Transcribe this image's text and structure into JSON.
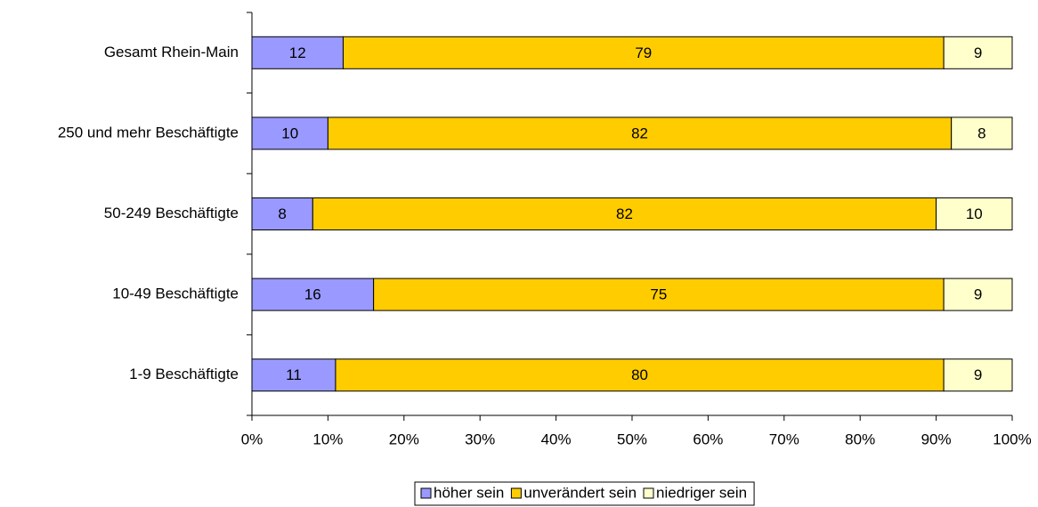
{
  "chart_data": {
    "type": "bar",
    "orientation": "horizontal",
    "stacked": true,
    "categories": [
      "Gesamt Rhein-Main",
      "250 und mehr Beschäftigte",
      "50-249 Beschäftigte",
      "10-49 Beschäftigte",
      "1-9 Beschäftigte"
    ],
    "series": [
      {
        "name": "höher sein",
        "color": "#9999ff",
        "values": [
          12,
          10,
          8,
          16,
          11
        ]
      },
      {
        "name": "unverändert sein",
        "color": "#ffcc00",
        "values": [
          79,
          82,
          82,
          75,
          80
        ]
      },
      {
        "name": "niedriger sein",
        "color": "#ffffcc",
        "values": [
          9,
          8,
          10,
          9,
          9
        ]
      }
    ],
    "xlim": [
      0,
      100
    ],
    "xticks": [
      {
        "value": 0,
        "label": "0%"
      },
      {
        "value": 10,
        "label": "10%"
      },
      {
        "value": 20,
        "label": "20%"
      },
      {
        "value": 30,
        "label": "30%"
      },
      {
        "value": 40,
        "label": "40%"
      },
      {
        "value": 50,
        "label": "50%"
      },
      {
        "value": 60,
        "label": "60%"
      },
      {
        "value": 70,
        "label": "70%"
      },
      {
        "value": 80,
        "label": "80%"
      },
      {
        "value": 90,
        "label": "90%"
      },
      {
        "value": 100,
        "label": "100%"
      }
    ],
    "legend": "bottom"
  }
}
